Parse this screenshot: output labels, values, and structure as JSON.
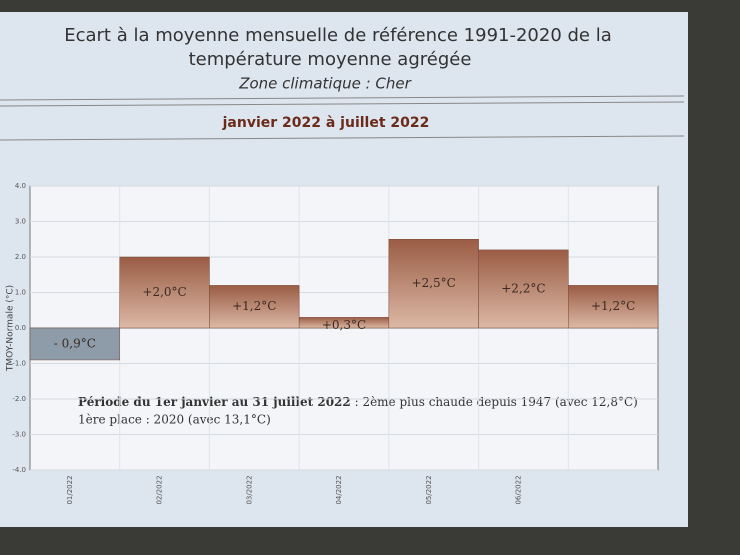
{
  "chart_data": {
    "type": "bar",
    "title": "Ecart à la moyenne mensuelle de référence 1991-2020 de la",
    "title_line2": "température moyenne  agrégée",
    "subtitle": "Zone climatique : Cher",
    "period": "janvier 2022 à juillet 2022",
    "y_label": "TMOY-Normale (°C)",
    "categories": [
      "01/2022",
      "02/2022",
      "03/2022",
      "04/2022",
      "05/2022",
      "06/2022",
      null
    ],
    "values": [
      -0.9,
      2.0,
      1.2,
      0.3,
      2.5,
      2.2,
      1.2
    ],
    "value_labels": [
      "- 0,9°C",
      "+2,0°C",
      "+1,2°C",
      "+0,3°C",
      "+2,5°C",
      "+2,2°C",
      "+1,2°C"
    ],
    "positive_color": "#a8705a",
    "negative_color": "#8d9ca8",
    "ylim": [
      -4,
      4
    ],
    "yticks": [
      {
        "value": -4,
        "label": "-4.0"
      },
      {
        "value": -3,
        "label": "-3.0"
      },
      {
        "value": -2,
        "label": "-2.0"
      },
      {
        "value": -1,
        "label": "-1.0"
      },
      {
        "value": 0,
        "label": "0.0"
      },
      {
        "value": 1,
        "label": "1.0"
      },
      {
        "value": 2,
        "label": "2.0"
      },
      {
        "value": 3,
        "label": "3.0"
      },
      {
        "value": 4,
        "label": "4.0"
      }
    ],
    "grid": true,
    "annotation_bold": "Période du 1er janvier au 31 juillet 2022",
    "annotation_rest": " : 2ème plus chaude depuis 1947 (avec 12,8°C)",
    "annotation_line2": "1ère place : 2020 (avec 13,1°C)"
  }
}
